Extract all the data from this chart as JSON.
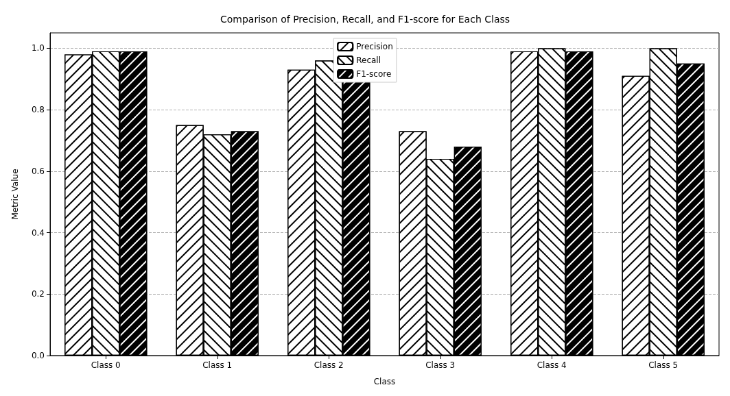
{
  "chart_data": {
    "type": "bar",
    "title": "Comparison of Precision, Recall, and F1-score for Each Class",
    "xlabel": "Class",
    "ylabel": "Metric Value",
    "categories": [
      "Class 0",
      "Class 1",
      "Class 2",
      "Class 3",
      "Class 4",
      "Class 5"
    ],
    "series": [
      {
        "name": "Precision",
        "color": "#ffffff",
        "values": [
          0.98,
          0.75,
          0.93,
          0.73,
          0.99,
          0.91
        ]
      },
      {
        "name": "Recall",
        "color": "#ffffff",
        "values": [
          0.99,
          0.72,
          0.96,
          0.64,
          1.0,
          1.0
        ]
      },
      {
        "name": "F1-score",
        "color": "#ffffff",
        "values": [
          0.99,
          0.73,
          0.95,
          0.68,
          0.99,
          0.95
        ]
      }
    ],
    "ylim": [
      0,
      1.05
    ],
    "yticks": [
      {
        "value": 0,
        "label": "0.0"
      },
      {
        "value": 0.2,
        "label": "0.2"
      },
      {
        "value": 0.4,
        "label": "0.4"
      },
      {
        "value": 0.6,
        "label": "0.6"
      },
      {
        "value": 0.8,
        "label": "0.8"
      },
      {
        "value": 1,
        "label": "1.0"
      }
    ],
    "grid": "y",
    "legend": "top"
  }
}
